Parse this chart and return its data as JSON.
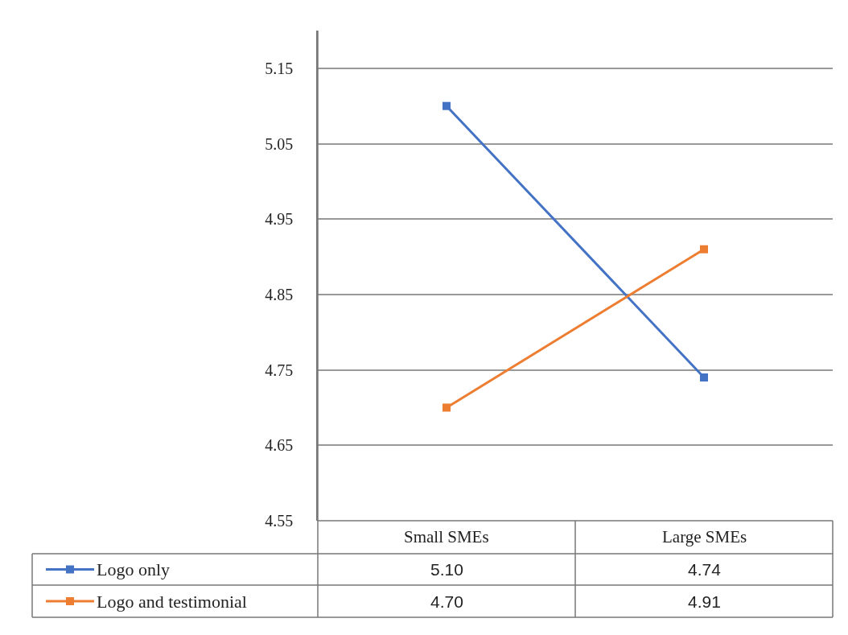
{
  "chart_data": {
    "type": "line",
    "categories": [
      "Small SMEs",
      "Large SMEs"
    ],
    "series": [
      {
        "name": "Logo only",
        "color": "#4472c4",
        "values": [
          5.1,
          4.74
        ],
        "value_labels": [
          "5.10",
          "4.74"
        ]
      },
      {
        "name": "Logo and testimonial",
        "color": "#ed7d31",
        "values": [
          4.7,
          4.91
        ],
        "value_labels": [
          "4.70",
          "4.91"
        ]
      }
    ],
    "ylim": [
      4.55,
      5.2
    ],
    "yticks": [
      4.55,
      4.65,
      4.75,
      4.85,
      4.95,
      5.05,
      5.15
    ],
    "grid": "y",
    "legend": "bottom left",
    "marker": "square",
    "line_style": "solid"
  }
}
